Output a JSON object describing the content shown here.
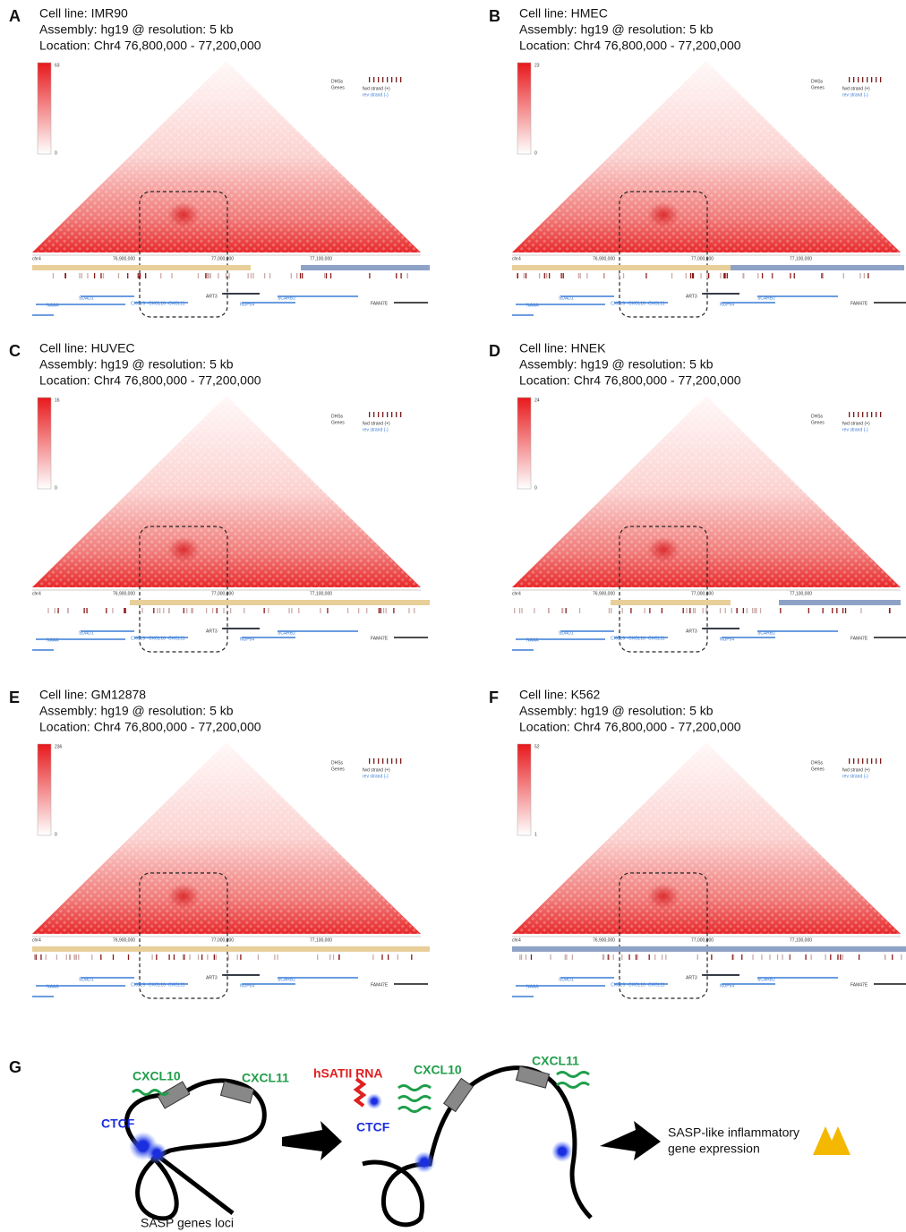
{
  "panels": [
    {
      "letter": "A",
      "cell_line": "Cell line: IMR90",
      "assembly": "Assembly: hg19 @ resolution: 5 kb",
      "location": "Location: Chr4 76,800,000 - 77,200,000",
      "colorbar_max": 63,
      "colorbar_min": 0
    },
    {
      "letter": "B",
      "cell_line": "Cell line: HMEC",
      "assembly": "Assembly: hg19 @ resolution: 5 kb",
      "location": "Location: Chr4 76,800,000 - 77,200,000",
      "colorbar_max": 23,
      "colorbar_min": 0
    },
    {
      "letter": "C",
      "cell_line": "Cell line: HUVEC",
      "assembly": "Assembly: hg19 @ resolution: 5 kb",
      "location": "Location: Chr4 76,800,000 - 77,200,000",
      "colorbar_max": 16,
      "colorbar_min": 0
    },
    {
      "letter": "D",
      "cell_line": "Cell line: HNEK",
      "assembly": "Assembly: hg19 @ resolution: 5 kb",
      "location": "Location: Chr4 76,800,000 - 77,200,000",
      "colorbar_max": 24,
      "colorbar_min": 0
    },
    {
      "letter": "E",
      "cell_line": "Cell line: GM12878",
      "assembly": "Assembly: hg19 @ resolution: 5 kb",
      "location": "Location: Chr4 76,800,000 - 77,200,000",
      "colorbar_max": 236,
      "colorbar_min": 0
    },
    {
      "letter": "F",
      "cell_line": "Cell line: K562",
      "assembly": "Assembly: hg19 @ resolution: 5 kb",
      "location": "Location: Chr4 76,800,000 - 77,200,000",
      "colorbar_max": 52,
      "colorbar_min": 1
    }
  ],
  "tracks": {
    "dhs": "DHSs",
    "genes": "Genes",
    "fwd": "fwd strand (+)",
    "rev": "rev strand (-)",
    "chrom": "chr4",
    "ticks": [
      "76,900,000",
      "77,000,000",
      "77,100,000"
    ],
    "gene_labels": [
      "NAAA",
      "SDAD1",
      "CXCL9",
      "CXCL10",
      "CXCL11",
      "ART3",
      "NUP54",
      "SCARB2",
      "FAM47E"
    ]
  },
  "model": {
    "letter": "G",
    "cxcl10": "CXCL10",
    "cxcl11": "CXCL11",
    "ctcf": "CTCF",
    "loci": "SASP genes loci",
    "rna": "hSATII RNA",
    "outcome_1": "SASP-like inflammatory",
    "outcome_2": "gene expression"
  }
}
